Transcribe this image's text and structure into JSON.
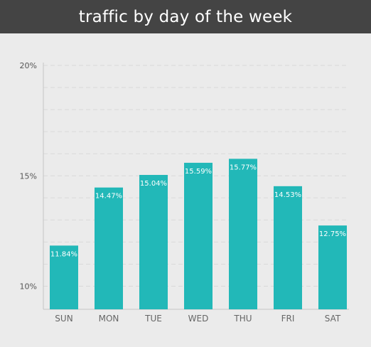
{
  "title": "traffic by day of the week",
  "colors": {
    "header_bg": "#444444",
    "background": "#ebebeb",
    "bar": "#22b8b8",
    "gridline": "#d9d9d9",
    "axis": "#c4c4c4"
  },
  "chart_data": {
    "type": "bar",
    "title": "traffic by day of the week",
    "xlabel": "",
    "ylabel": "",
    "categories": [
      "SUN",
      "MON",
      "TUE",
      "WED",
      "THU",
      "FRI",
      "SAT"
    ],
    "values": [
      11.84,
      14.47,
      15.04,
      15.59,
      15.77,
      14.53,
      12.75
    ],
    "data_labels": [
      "11.84%",
      "14.47%",
      "15.04%",
      "15.59%",
      "15.77%",
      "14.53%",
      "12.75%"
    ],
    "ylim": [
      9,
      20
    ],
    "yticks": [
      10,
      15,
      20
    ],
    "ytick_labels": [
      "10%",
      "15%",
      "20%"
    ],
    "grid": true,
    "grid_step": 1
  }
}
